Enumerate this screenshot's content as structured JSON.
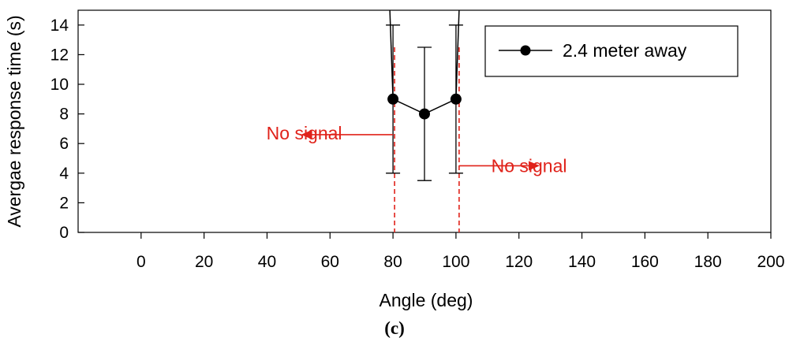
{
  "chart_data": {
    "type": "line",
    "xlabel": "Angle (deg)",
    "ylabel": "Avergae response time (s)",
    "xlim": [
      -20,
      200
    ],
    "ylim": [
      0,
      15
    ],
    "x_ticks": [
      0,
      20,
      40,
      60,
      80,
      100,
      120,
      140,
      160,
      180,
      200
    ],
    "y_ticks": [
      0,
      2,
      4,
      6,
      8,
      10,
      12,
      14
    ],
    "grid": false,
    "legend_position": "top-right",
    "series": [
      {
        "name": "2.4 meter away",
        "color": "#000000",
        "marker": "circle",
        "x": [
          80,
          90,
          100
        ],
        "y": [
          9,
          8,
          9
        ],
        "error_low": [
          4,
          3.5,
          4
        ],
        "error_high": [
          14,
          12.5,
          14
        ],
        "edge_segments": [
          {
            "from": [
              80,
              9
            ],
            "to": [
              79,
              15
            ]
          },
          {
            "from": [
              100,
              9
            ],
            "to": [
              101,
              15
            ]
          }
        ]
      }
    ],
    "reference_lines": [
      {
        "x": 80.5,
        "color": "#e0221a",
        "style": "dashed"
      },
      {
        "x": 101,
        "color": "#e0221a",
        "style": "dashed"
      }
    ],
    "annotations": [
      {
        "text": "No signal",
        "text_x": 39.8,
        "text_y": 6.7,
        "arrow_from": [
          80,
          6.6
        ],
        "arrow_to": [
          50.8,
          6.6
        ],
        "color": "#e0221a"
      },
      {
        "text": "No signal",
        "text_x": 111.2,
        "text_y": 4.5,
        "arrow_from": [
          101,
          4.5
        ],
        "arrow_to": [
          126.6,
          4.5
        ],
        "color": "#e0221a"
      }
    ]
  },
  "figure_label": "(c)"
}
